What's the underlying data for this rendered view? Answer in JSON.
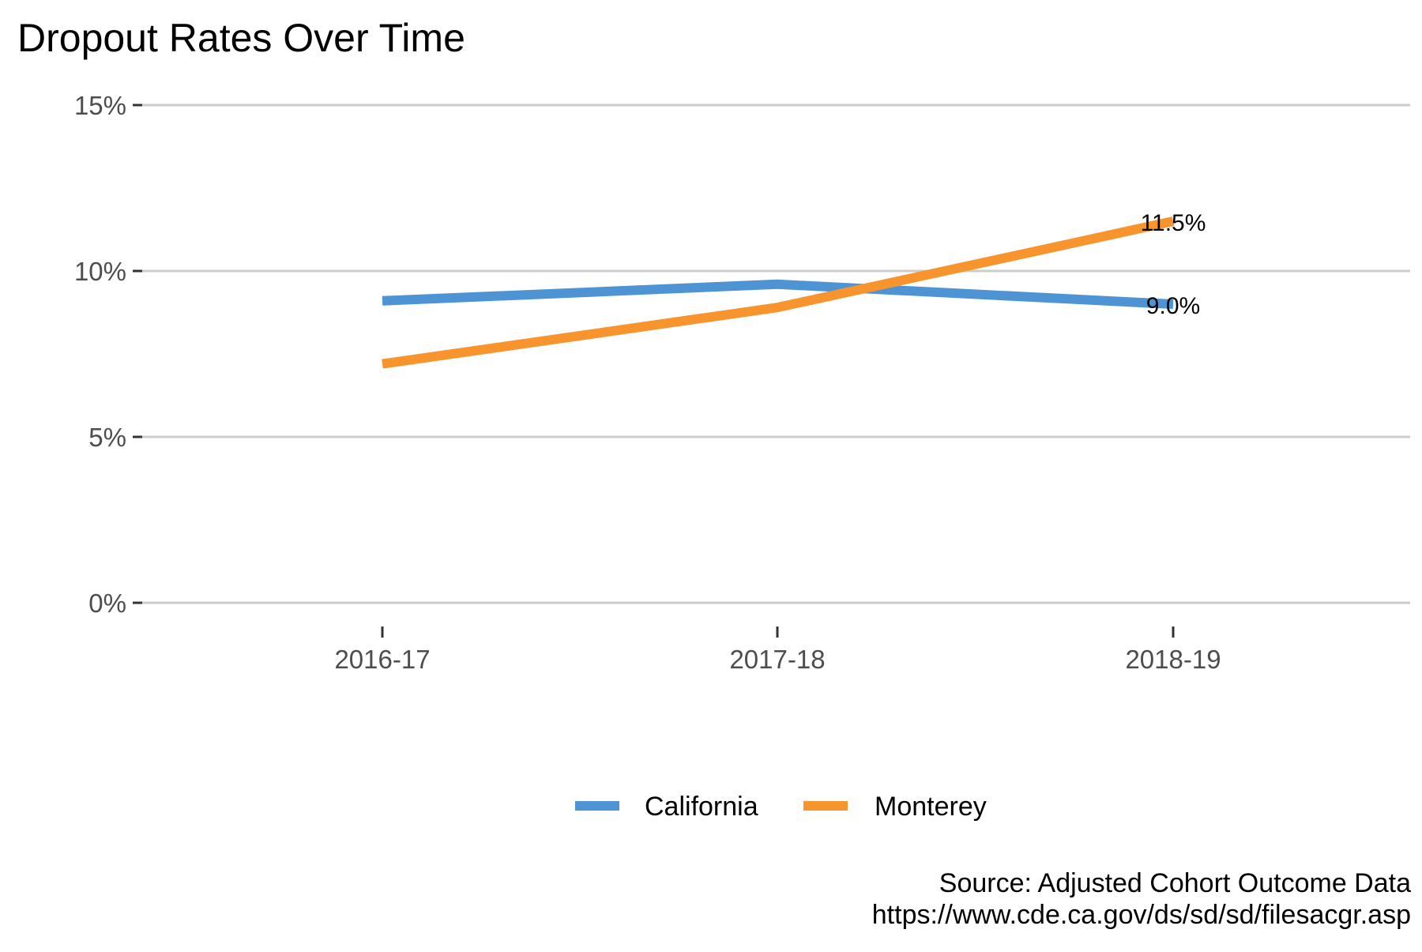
{
  "chart_data": {
    "type": "line",
    "title": "Dropout Rates Over Time",
    "xlabel": "",
    "ylabel": "",
    "categories": [
      "2016-17",
      "2017-18",
      "2018-19"
    ],
    "y_ticks": [
      "0%",
      "5%",
      "10%",
      "15%"
    ],
    "y_tick_values": [
      0,
      5,
      10,
      15
    ],
    "ylim": [
      0,
      15
    ],
    "grid": "horizontal major gridlines",
    "legend_position": "bottom",
    "series": [
      {
        "name": "California",
        "color": "#4E94D4",
        "values": [
          9.1,
          9.6,
          9.0
        ],
        "end_label": "9.0%"
      },
      {
        "name": "Monterey",
        "color": "#F7942E",
        "values": [
          7.2,
          8.9,
          11.5
        ],
        "end_label": "11.5%"
      }
    ],
    "caption": [
      "Source: Adjusted Cohort Outcome Data",
      "https://www.cde.ca.gov/ds/sd/sd/filesacgr.asp"
    ]
  }
}
